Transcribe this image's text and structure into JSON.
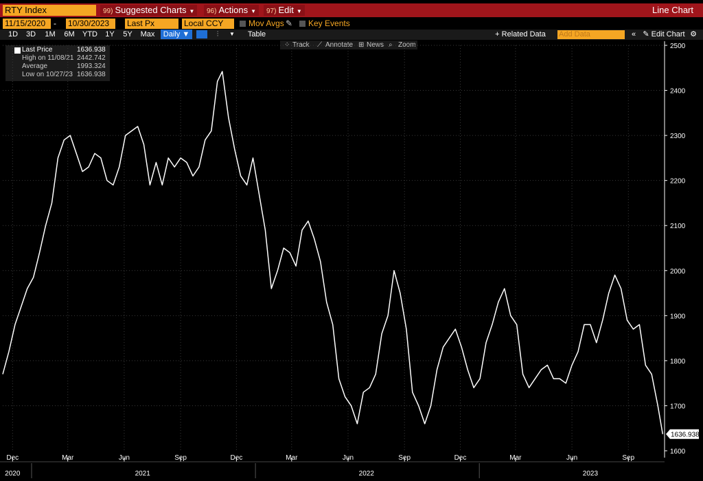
{
  "window": {
    "security": "RTY Index",
    "menus": [
      {
        "code": "99)",
        "label": "Suggested Charts"
      },
      {
        "code": "96)",
        "label": "Actions"
      },
      {
        "code": "97)",
        "label": "Edit"
      }
    ],
    "chart_title": "Line Chart"
  },
  "controls": {
    "start_date": "11/15/2020",
    "end_date": "10/30/2023",
    "date_sep": "-",
    "field": "Last Px",
    "currency": "Local CCY",
    "mov_avgs": "Mov Avgs",
    "key_events": "Key Events",
    "ranges": [
      "1D",
      "3D",
      "1M",
      "6M",
      "YTD",
      "1Y",
      "5Y",
      "Max"
    ],
    "frequency": "Daily",
    "frequency_caret": "▼",
    "table": "Table",
    "related_data": "+ Related Data",
    "add_data_placeholder": "Add Data",
    "edit_chart": "Edit Chart"
  },
  "tools": [
    "Track",
    "Annotate",
    "News",
    "Zoom"
  ],
  "legend": [
    {
      "label": "Last Price",
      "value": "1636.938"
    },
    {
      "label": "High on 11/08/21",
      "value": "2442.742"
    },
    {
      "label": "Average",
      "value": "1993.324"
    },
    {
      "label": "Low on 10/27/23",
      "value": "1636.938"
    }
  ],
  "colors": {
    "title_bar": "#a0151b",
    "accent": "#f5a623",
    "line": "#ffffff",
    "grid": "#3a3a3a",
    "selected": "#1f6fd6"
  },
  "chart_data": {
    "type": "line",
    "title": "",
    "xlabel": "",
    "ylabel": "",
    "ylim": [
      1600,
      2500
    ],
    "xlim": [
      "2020-11-15",
      "2023-10-30"
    ],
    "y_ticks": [
      1600,
      1700,
      1800,
      1900,
      2000,
      2100,
      2200,
      2300,
      2400,
      2500
    ],
    "x_ticks": [
      {
        "date": "2020-12-01",
        "label": "Dec"
      },
      {
        "date": "2021-03-01",
        "label": "Mar"
      },
      {
        "date": "2021-06-01",
        "label": "Jun"
      },
      {
        "date": "2021-09-01",
        "label": "Sep"
      },
      {
        "date": "2021-12-01",
        "label": "Dec"
      },
      {
        "date": "2022-03-01",
        "label": "Mar"
      },
      {
        "date": "2022-06-01",
        "label": "Jun"
      },
      {
        "date": "2022-09-01",
        "label": "Sep"
      },
      {
        "date": "2022-12-01",
        "label": "Dec"
      },
      {
        "date": "2023-03-01",
        "label": "Mar"
      },
      {
        "date": "2023-06-01",
        "label": "Jun"
      },
      {
        "date": "2023-09-01",
        "label": "Sep"
      }
    ],
    "year_labels": [
      {
        "date": "2020-12-01",
        "label": "2020"
      },
      {
        "date": "2021-07-01",
        "label": "2021"
      },
      {
        "date": "2022-07-01",
        "label": "2022"
      },
      {
        "date": "2023-07-01",
        "label": "2023"
      }
    ],
    "last_value_label": "1636.938",
    "grid": true,
    "series": [
      {
        "x": [
          "2020-11-15",
          "2020-11-25",
          "2020-12-05",
          "2020-12-15",
          "2020-12-25",
          "2021-01-04",
          "2021-01-14",
          "2021-01-24",
          "2021-02-03",
          "2021-02-13",
          "2021-02-23",
          "2021-03-05",
          "2021-03-15",
          "2021-03-25",
          "2021-04-04",
          "2021-04-14",
          "2021-04-24",
          "2021-05-04",
          "2021-05-14",
          "2021-05-24",
          "2021-06-03",
          "2021-06-13",
          "2021-06-23",
          "2021-07-03",
          "2021-07-13",
          "2021-07-23",
          "2021-08-02",
          "2021-08-12",
          "2021-08-22",
          "2021-09-01",
          "2021-09-11",
          "2021-09-21",
          "2021-10-01",
          "2021-10-11",
          "2021-10-21",
          "2021-10-31",
          "2021-11-08",
          "2021-11-18",
          "2021-11-28",
          "2021-12-08",
          "2021-12-18",
          "2021-12-28",
          "2022-01-07",
          "2022-01-17",
          "2022-01-27",
          "2022-02-06",
          "2022-02-16",
          "2022-02-26",
          "2022-03-08",
          "2022-03-18",
          "2022-03-28",
          "2022-04-07",
          "2022-04-17",
          "2022-04-27",
          "2022-05-07",
          "2022-05-17",
          "2022-05-27",
          "2022-06-06",
          "2022-06-16",
          "2022-06-26",
          "2022-07-06",
          "2022-07-16",
          "2022-07-26",
          "2022-08-05",
          "2022-08-15",
          "2022-08-25",
          "2022-09-04",
          "2022-09-14",
          "2022-09-24",
          "2022-10-04",
          "2022-10-14",
          "2022-10-24",
          "2022-11-03",
          "2022-11-13",
          "2022-11-23",
          "2022-12-03",
          "2022-12-13",
          "2022-12-23",
          "2023-01-02",
          "2023-01-12",
          "2023-01-22",
          "2023-02-01",
          "2023-02-11",
          "2023-02-21",
          "2023-03-03",
          "2023-03-13",
          "2023-03-23",
          "2023-04-02",
          "2023-04-12",
          "2023-04-22",
          "2023-05-02",
          "2023-05-12",
          "2023-05-22",
          "2023-06-01",
          "2023-06-11",
          "2023-06-21",
          "2023-07-01",
          "2023-07-11",
          "2023-07-21",
          "2023-07-31",
          "2023-08-10",
          "2023-08-20",
          "2023-08-30",
          "2023-09-09",
          "2023-09-19",
          "2023-09-29",
          "2023-10-09",
          "2023-10-19",
          "2023-10-27"
        ],
        "y": [
          1770,
          1820,
          1880,
          1920,
          1960,
          1985,
          2040,
          2100,
          2150,
          2250,
          2290,
          2300,
          2260,
          2220,
          2230,
          2260,
          2250,
          2200,
          2190,
          2230,
          2300,
          2310,
          2320,
          2280,
          2190,
          2240,
          2190,
          2250,
          2230,
          2250,
          2240,
          2210,
          2230,
          2290,
          2310,
          2420,
          2442,
          2340,
          2270,
          2210,
          2190,
          2250,
          2170,
          2090,
          1960,
          2000,
          2050,
          2040,
          2010,
          2090,
          2110,
          2070,
          2020,
          1930,
          1880,
          1760,
          1720,
          1700,
          1660,
          1730,
          1740,
          1770,
          1860,
          1900,
          2000,
          1950,
          1870,
          1730,
          1700,
          1660,
          1700,
          1780,
          1830,
          1850,
          1870,
          1830,
          1780,
          1740,
          1760,
          1840,
          1880,
          1930,
          1960,
          1900,
          1880,
          1770,
          1740,
          1760,
          1780,
          1790,
          1760,
          1760,
          1750,
          1790,
          1820,
          1880,
          1880,
          1840,
          1890,
          1950,
          1990,
          1960,
          1890,
          1870,
          1880,
          1790,
          1770,
          1700,
          1637
        ]
      }
    ]
  }
}
